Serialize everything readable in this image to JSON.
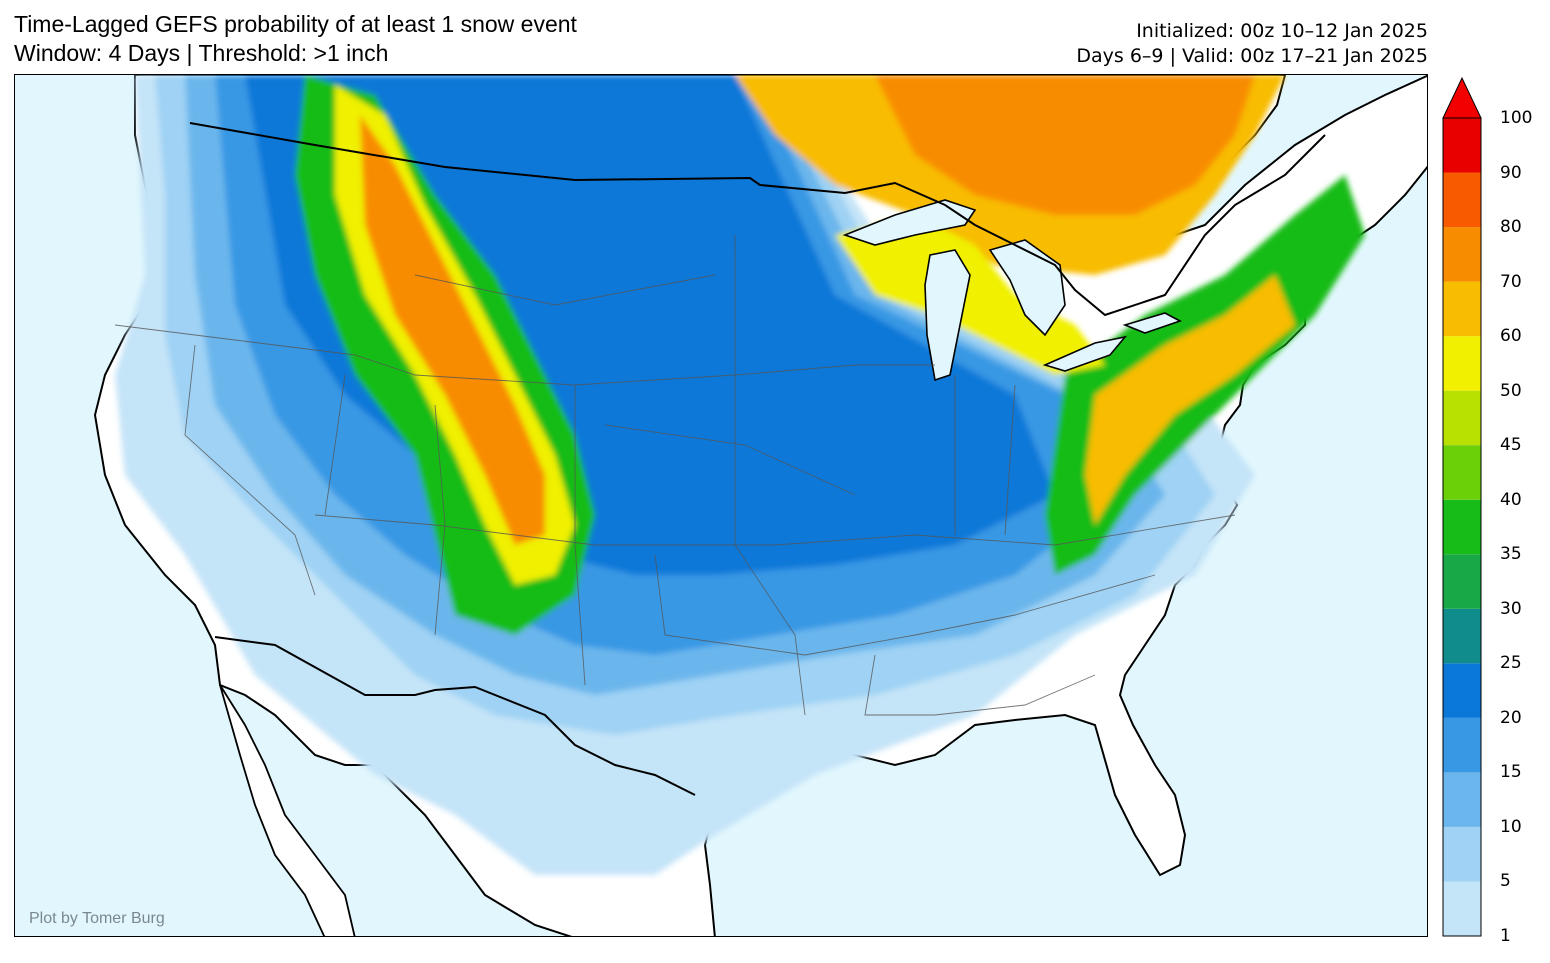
{
  "header": {
    "title_line1": "Time-Lagged GEFS probability of at least 1 snow event",
    "title_line2": "Window: 4 Days | Threshold: >1 inch",
    "init_line": "Initialized: 00z 10–12 Jan 2025",
    "valid_line": "Days 6–9 | Valid: 00z 17–21 Jan 2025"
  },
  "map": {
    "credit": "Plot by Tomer Burg",
    "ocean_color": "#e2f7fd",
    "land_color": "#ffffff",
    "border_color": "#000000",
    "state_line_color": "#555555"
  },
  "colorbar": {
    "ticks": [
      "100",
      "90",
      "80",
      "70",
      "60",
      "50",
      "45",
      "40",
      "35",
      "30",
      "25",
      "20",
      "15",
      "10",
      "5",
      "1"
    ],
    "colors": [
      "#c4e4f8",
      "#9fd2f4",
      "#6bb6ec",
      "#3898e4",
      "#0a78d8",
      "#108c8c",
      "#18a848",
      "#18bc18",
      "#6cd008",
      "#b8e000",
      "#f0f000",
      "#f8bc00",
      "#f88c00",
      "#f85a00",
      "#e80000"
    ],
    "extend_max_color": "#f20000"
  }
}
